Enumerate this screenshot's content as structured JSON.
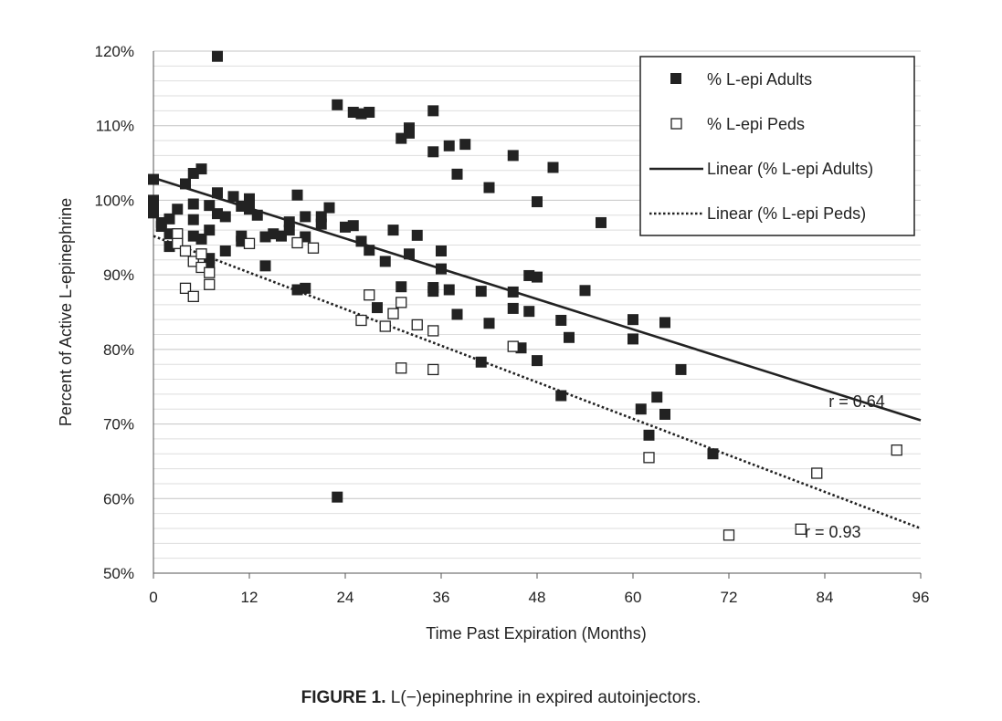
{
  "chart_data": {
    "type": "scatter",
    "xlabel": "Time Past Expiration (Months)",
    "ylabel": "Percent of Active L-epinephrine",
    "xlim": [
      0,
      96
    ],
    "ylim": [
      50,
      120
    ],
    "x_ticks": [
      0,
      12,
      24,
      36,
      48,
      60,
      72,
      84,
      96
    ],
    "y_ticks": [
      50,
      60,
      70,
      80,
      90,
      100,
      110,
      120
    ],
    "y_tick_labels": [
      "50%",
      "60%",
      "70%",
      "80%",
      "90%",
      "100%",
      "110%",
      "120%"
    ],
    "grid": "horizontal",
    "legend_position": "top-right",
    "series": [
      {
        "name": "% L-epi Adults",
        "marker": "filled-square",
        "color": "#222222",
        "points": [
          [
            0,
            102.8
          ],
          [
            0,
            100
          ],
          [
            0,
            99
          ],
          [
            0,
            98.3
          ],
          [
            1,
            96.5
          ],
          [
            1,
            97
          ],
          [
            2,
            97.5
          ],
          [
            2,
            95.5
          ],
          [
            2,
            93.8
          ],
          [
            3,
            95
          ],
          [
            3,
            98.8
          ],
          [
            4,
            102.2
          ],
          [
            5,
            103.6
          ],
          [
            5,
            99.5
          ],
          [
            5,
            97.4
          ],
          [
            5,
            95.2
          ],
          [
            6,
            104.2
          ],
          [
            6,
            94.8
          ],
          [
            7,
            99.3
          ],
          [
            7,
            96
          ],
          [
            7,
            92.2
          ],
          [
            7,
            91.5
          ],
          [
            8,
            119.3
          ],
          [
            8,
            101
          ],
          [
            8,
            98.2
          ],
          [
            9,
            97.8
          ],
          [
            9,
            93.2
          ],
          [
            10,
            100.5
          ],
          [
            11,
            99.2
          ],
          [
            11,
            95.2
          ],
          [
            11,
            94.5
          ],
          [
            12,
            100.2
          ],
          [
            12,
            98.8
          ],
          [
            13,
            98
          ],
          [
            14,
            95.1
          ],
          [
            14,
            91.2
          ],
          [
            15,
            95.5
          ],
          [
            16,
            95.2
          ],
          [
            17,
            97.1
          ],
          [
            17,
            96
          ],
          [
            18,
            100.7
          ],
          [
            18,
            88
          ],
          [
            19,
            97.8
          ],
          [
            19,
            95.1
          ],
          [
            19,
            88.2
          ],
          [
            21,
            97.8
          ],
          [
            21,
            96.8
          ],
          [
            22,
            99
          ],
          [
            23,
            112.8
          ],
          [
            23,
            60.2
          ],
          [
            24,
            96.4
          ],
          [
            25,
            111.8
          ],
          [
            25,
            96.6
          ],
          [
            26,
            111.6
          ],
          [
            26,
            94.5
          ],
          [
            27,
            111.8
          ],
          [
            27,
            93.3
          ],
          [
            28,
            85.6
          ],
          [
            29,
            91.8
          ],
          [
            30,
            96
          ],
          [
            31,
            108.3
          ],
          [
            31,
            88.4
          ],
          [
            32,
            109.7
          ],
          [
            32,
            109
          ],
          [
            32,
            92.8
          ],
          [
            33,
            95.3
          ],
          [
            35,
            112
          ],
          [
            35,
            106.5
          ],
          [
            35,
            88.3
          ],
          [
            35,
            87.8
          ],
          [
            36,
            93.2
          ],
          [
            36,
            90.8
          ],
          [
            37,
            107.3
          ],
          [
            37,
            88
          ],
          [
            38,
            103.5
          ],
          [
            38,
            84.7
          ],
          [
            39,
            107.5
          ],
          [
            41,
            87.8
          ],
          [
            41,
            78.3
          ],
          [
            42,
            101.7
          ],
          [
            42,
            83.5
          ],
          [
            45,
            106
          ],
          [
            45,
            87.7
          ],
          [
            45,
            85.5
          ],
          [
            46,
            80.2
          ],
          [
            47,
            89.9
          ],
          [
            47,
            85.1
          ],
          [
            48,
            99.8
          ],
          [
            48,
            89.7
          ],
          [
            48,
            78.5
          ],
          [
            50,
            104.4
          ],
          [
            51,
            83.9
          ],
          [
            51,
            73.8
          ],
          [
            52,
            81.6
          ],
          [
            54,
            87.9
          ],
          [
            56,
            97
          ],
          [
            60,
            84
          ],
          [
            60,
            81.4
          ],
          [
            61,
            72
          ],
          [
            62,
            68.5
          ],
          [
            63,
            73.6
          ],
          [
            64,
            83.6
          ],
          [
            64,
            71.3
          ],
          [
            66,
            77.3
          ],
          [
            70,
            66
          ]
        ]
      },
      {
        "name": "% L-epi Peds",
        "marker": "open-square",
        "color": "#222222",
        "points": [
          [
            3,
            95.5
          ],
          [
            3,
            94.2
          ],
          [
            4,
            93.2
          ],
          [
            4,
            88.2
          ],
          [
            5,
            91.8
          ],
          [
            5,
            87.1
          ],
          [
            6,
            92.8
          ],
          [
            6,
            91
          ],
          [
            7,
            90.3
          ],
          [
            7,
            88.7
          ],
          [
            12,
            94.2
          ],
          [
            18,
            94.3
          ],
          [
            20,
            93.6
          ],
          [
            26,
            83.9
          ],
          [
            27,
            87.3
          ],
          [
            29,
            83.1
          ],
          [
            30,
            84.8
          ],
          [
            31,
            86.3
          ],
          [
            31,
            77.5
          ],
          [
            33,
            83.3
          ],
          [
            35,
            82.5
          ],
          [
            35,
            77.3
          ],
          [
            45,
            80.4
          ],
          [
            62,
            65.5
          ],
          [
            72,
            55.1
          ],
          [
            81,
            55.9
          ],
          [
            83,
            63.4
          ],
          [
            93,
            66.5
          ]
        ]
      }
    ],
    "trendlines": [
      {
        "name": "Linear (% L-epi Adults)",
        "style": "solid",
        "x": [
          0,
          96
        ],
        "y": [
          103,
          70.5
        ],
        "r_label": "r = 0.64",
        "r_at": [
          88,
          73
        ]
      },
      {
        "name": "Linear (% L-epi Peds)",
        "style": "dotted",
        "x": [
          0,
          96
        ],
        "y": [
          95.2,
          56
        ],
        "r_label": "r = 0.93",
        "r_at": [
          85,
          55.5
        ]
      }
    ]
  },
  "caption": {
    "label": "FIGURE 1.",
    "text": "L(−)epinephrine in expired autoinjectors."
  }
}
